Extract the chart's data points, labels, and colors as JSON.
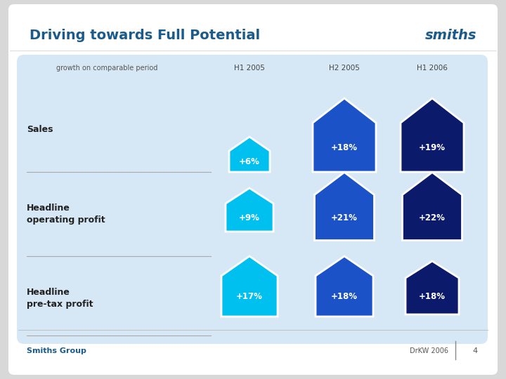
{
  "title": "Driving towards Full Potential",
  "smiths_logo": "smiths",
  "bg_outer": "#d8d8d8",
  "bg_slide": "#ffffff",
  "bg_panel": "#d6e8f5",
  "title_color": "#1a5b8c",
  "footer_left": "Smiths Group",
  "footer_right": "DrKW 2006",
  "footer_page": "4",
  "footer_color": "#1a5b8c",
  "col_headers": [
    "H1 2005",
    "H2 2005",
    "H1 2006"
  ],
  "row_labels": [
    "Sales",
    "Headline\noperating profit",
    "Headline\npre-tax profit"
  ],
  "values": [
    [
      "+6%",
      "+18%",
      "+19%"
    ],
    [
      "+9%",
      "+21%",
      "+22%"
    ],
    [
      "+17%",
      "+18%",
      "+18%"
    ]
  ],
  "house_colors": [
    [
      "#00c0f0",
      "#1b52c8",
      "#0b1a6b"
    ],
    [
      "#00c0f0",
      "#1b52c8",
      "#0b1a6b"
    ],
    [
      "#00c0f0",
      "#1b52c8",
      "#0b1a6b"
    ]
  ]
}
